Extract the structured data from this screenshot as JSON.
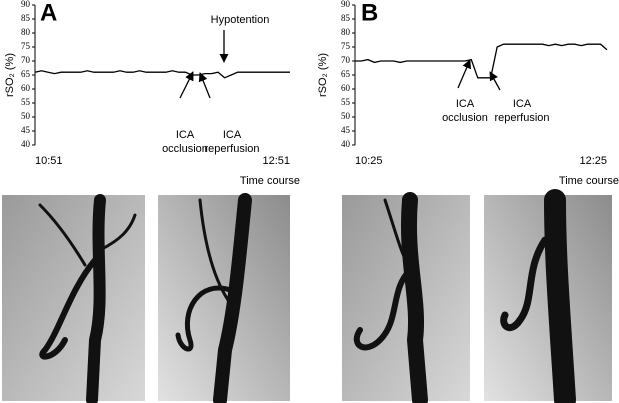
{
  "chart_data": [
    {
      "type": "line",
      "panel": "A",
      "ylabel": "rSO₂ (%)",
      "xlabel": "Time course",
      "categories": [
        "10:51",
        null,
        null,
        null,
        null,
        null,
        null,
        null,
        null,
        null,
        null,
        null,
        null,
        null,
        null,
        null,
        null,
        null,
        null,
        null,
        null,
        null,
        null,
        null,
        null,
        null,
        null,
        null,
        null,
        null,
        null,
        null,
        null,
        null,
        null,
        null,
        null,
        null,
        null,
        "12:51"
      ],
      "values": [
        66,
        66.5,
        66,
        65.5,
        66,
        66,
        66,
        66,
        66.5,
        66,
        66,
        66,
        66,
        66.5,
        66,
        66,
        66.5,
        66,
        66,
        66,
        66,
        66.5,
        66,
        66,
        65,
        65,
        65.5,
        65.5,
        66,
        64,
        65,
        66,
        66,
        66,
        66,
        66,
        66,
        66,
        66,
        66
      ],
      "color": "#000000",
      "ylim": [
        40,
        90
      ],
      "yticks": [
        40,
        45,
        50,
        55,
        60,
        65,
        70,
        75,
        80,
        85,
        90
      ],
      "annotations": [
        {
          "lines": [
            "ICA",
            "occlusion"
          ]
        },
        {
          "lines": [
            "ICA",
            "reperfusion"
          ]
        },
        {
          "lines": [
            "Hypotention"
          ]
        }
      ]
    },
    {
      "type": "line",
      "panel": "B",
      "ylabel": "rSO₂ (%)",
      "xlabel": "Time course",
      "categories": [
        "10:25",
        null,
        null,
        null,
        null,
        null,
        null,
        null,
        null,
        null,
        null,
        null,
        null,
        null,
        null,
        null,
        null,
        null,
        null,
        null,
        null,
        null,
        null,
        null,
        null,
        null,
        null,
        null,
        null,
        null,
        null,
        null,
        null,
        null,
        null,
        null,
        null,
        null,
        null,
        "12:25"
      ],
      "values": [
        70,
        70,
        70.5,
        69.5,
        70,
        70,
        70,
        69.5,
        70,
        70,
        70,
        70,
        70,
        70,
        70,
        70,
        70,
        70,
        70.5,
        64,
        64,
        64,
        75,
        76,
        76,
        76,
        76,
        76,
        76,
        76,
        75.5,
        76,
        75.5,
        76,
        76,
        75.5,
        76,
        76,
        76,
        74
      ],
      "color": "#000000",
      "ylim": [
        40,
        90
      ],
      "yticks": [
        40,
        45,
        50,
        55,
        60,
        65,
        70,
        75,
        80,
        85,
        90
      ],
      "annotations": [
        {
          "lines": [
            "ICA",
            "occlusion"
          ]
        },
        {
          "lines": [
            "ICA",
            "reperfusion"
          ]
        }
      ]
    }
  ]
}
